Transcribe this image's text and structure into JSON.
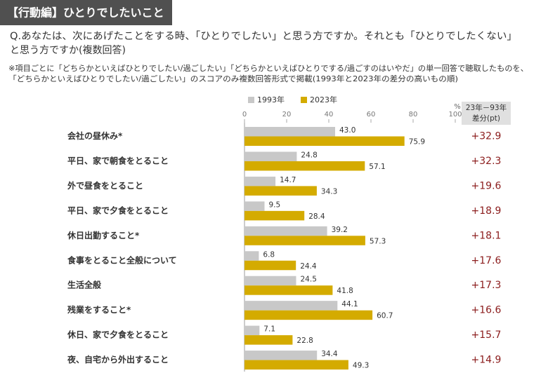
{
  "header": {
    "title": "【行動編】ひとりでしたいこと",
    "question": [
      "Q.あなたは、次にあげたことをする時、「ひとりでしたい」と思う方ですか。それとも「ひとりでしたくない」",
      "と思う方ですか(複数回答)"
    ],
    "notes": [
      "※項目ごとに「どちらかといえばひとりでしたい/過ごしたい」「どちらかといえばひとりでする/過ごすのはいやだ」の単一回答で聴取したものを、",
      "「どちらかといえばひとりでしたい/過ごしたい」のスコアのみ複数回答形式で掲載(1993年と2023年の差分の高いもの順)"
    ]
  },
  "chart_data": {
    "type": "bar",
    "orientation": "horizontal",
    "categories": [
      "会社の昼休み*",
      "平日、家で朝食をとること",
      "外で昼食をとること",
      "平日、家で夕食をとること",
      "休日出勤すること*",
      "食事をとること全般について",
      "生活全般",
      "残業をすること*",
      "休日、家で夕食をとること",
      "夜、自宅から外出すること"
    ],
    "series": [
      {
        "name": "1993年",
        "color": "#c8c8c8",
        "values": [
          43.0,
          24.8,
          14.7,
          9.5,
          39.2,
          6.8,
          24.5,
          44.1,
          7.1,
          34.4
        ],
        "value_labels": [
          "43.0",
          "24.8",
          "14.7",
          "9.5",
          "39.2",
          "6.8",
          "24.5",
          "44.1",
          "7.1",
          "34.4"
        ]
      },
      {
        "name": "2023年",
        "color": "#d4ab00",
        "values": [
          75.9,
          57.1,
          34.3,
          28.4,
          57.3,
          24.4,
          41.8,
          60.7,
          22.8,
          49.3
        ],
        "value_labels": [
          "75.9",
          "57.1",
          "34.3",
          "28.4",
          "57.3",
          "24.4",
          "41.8",
          "60.7",
          "22.8",
          "49.3"
        ]
      }
    ],
    "xlim": [
      0,
      100
    ],
    "xticks": [
      0,
      20,
      40,
      60,
      80,
      100
    ],
    "x_unit": "%",
    "difference": {
      "title": "23年－93年",
      "subtitle": "差分(pt)",
      "color": "#8b1c1c",
      "values": [
        32.9,
        32.3,
        19.6,
        18.9,
        18.1,
        17.6,
        17.3,
        16.6,
        15.7,
        14.9
      ],
      "value_labels": [
        "+32.9",
        "+32.3",
        "+19.6",
        "+18.9",
        "+18.1",
        "+17.6",
        "+17.3",
        "+16.6",
        "+15.7",
        "+14.9"
      ]
    }
  }
}
